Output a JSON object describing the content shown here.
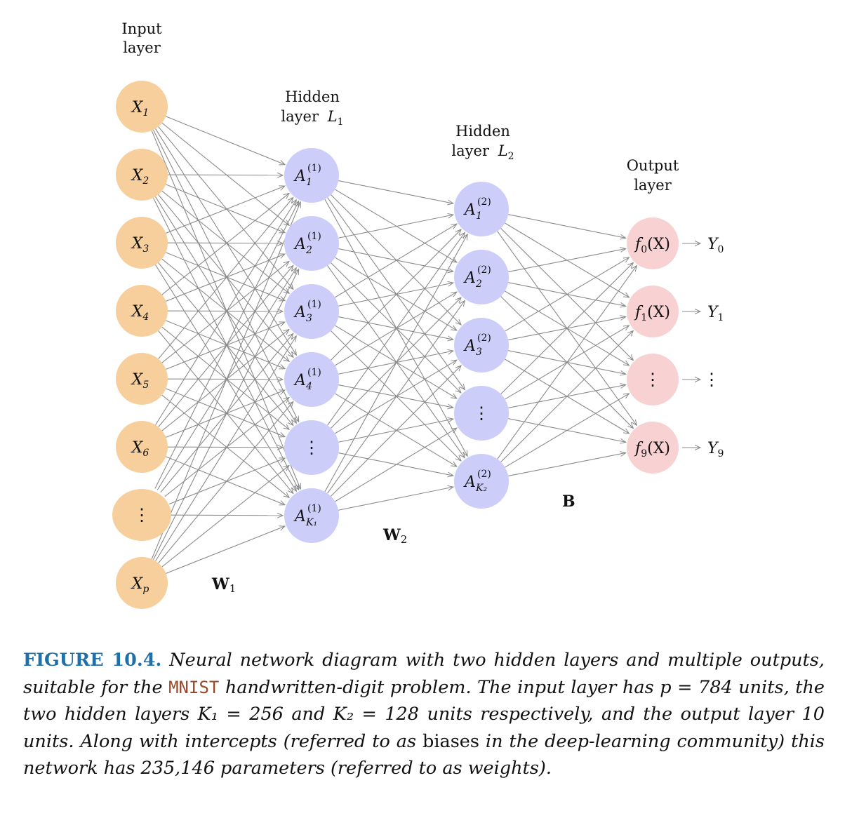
{
  "layers": {
    "input": {
      "title_line1": "Input",
      "title_line2": "layer"
    },
    "hidden1": {
      "title_line1": "Hidden",
      "title_line2": "layer",
      "title_var": "L",
      "title_sub": "1"
    },
    "hidden2": {
      "title_line1": "Hidden",
      "title_line2": "layer",
      "title_var": "L",
      "title_sub": "2"
    },
    "output": {
      "title_line1": "Output",
      "title_line2": "layer"
    }
  },
  "input_nodes": [
    {
      "var": "X",
      "sub": "1"
    },
    {
      "var": "X",
      "sub": "2"
    },
    {
      "var": "X",
      "sub": "3"
    },
    {
      "var": "X",
      "sub": "4"
    },
    {
      "var": "X",
      "sub": "5"
    },
    {
      "var": "X",
      "sub": "6"
    },
    {
      "dots": "⋮"
    },
    {
      "var": "X",
      "sub": "p"
    }
  ],
  "hidden1_nodes": [
    {
      "var": "A",
      "sup": "(1)",
      "sub": "1"
    },
    {
      "var": "A",
      "sup": "(1)",
      "sub": "2"
    },
    {
      "var": "A",
      "sup": "(1)",
      "sub": "3"
    },
    {
      "var": "A",
      "sup": "(1)",
      "sub": "4"
    },
    {
      "dots": "⋮"
    },
    {
      "var": "A",
      "sup": "(1)",
      "sub": "K₁"
    }
  ],
  "hidden2_nodes": [
    {
      "var": "A",
      "sup": "(2)",
      "sub": "1"
    },
    {
      "var": "A",
      "sup": "(2)",
      "sub": "2"
    },
    {
      "var": "A",
      "sup": "(2)",
      "sub": "3"
    },
    {
      "dots": "⋮"
    },
    {
      "var": "A",
      "sup": "(2)",
      "sub": "K₂"
    }
  ],
  "output_nodes": [
    {
      "func": "f",
      "sub": "0",
      "arg": "(X)",
      "y": "Y",
      "ysub": "0"
    },
    {
      "func": "f",
      "sub": "1",
      "arg": "(X)",
      "y": "Y",
      "ysub": "1"
    },
    {
      "dots": "⋮",
      "ydots": "⋮"
    },
    {
      "func": "f",
      "sub": "9",
      "arg": "(X)",
      "y": "Y",
      "ysub": "9"
    }
  ],
  "weights": {
    "w1": {
      "label": "W",
      "sub": "1"
    },
    "w2": {
      "label": "W",
      "sub": "2"
    },
    "b": {
      "label": "B"
    }
  },
  "colors": {
    "input_fill": "#f6cf9c",
    "hidden_fill": "#cdcdfa",
    "output_fill": "#f8d1d3",
    "edge": "#8a8a8a",
    "figure_number": "#1f6fa8",
    "code": "#9a4a2a"
  },
  "caption": {
    "figure_number": "FIGURE 10.4.",
    "text_1": "Neural network diagram with two hidden layers and multiple outputs, suitable for the",
    "code": "MNIST",
    "text_2": "handwritten-digit problem. The input layer has p = 784 units, the two hidden layers K₁ = 256 and K₂ = 128 units respectively, and the output layer 10 units. Along with intercepts (referred to as",
    "biases": "biases",
    "text_3": "in the deep-learning community) this network has 235,146 parameters (referred to as weights)."
  }
}
